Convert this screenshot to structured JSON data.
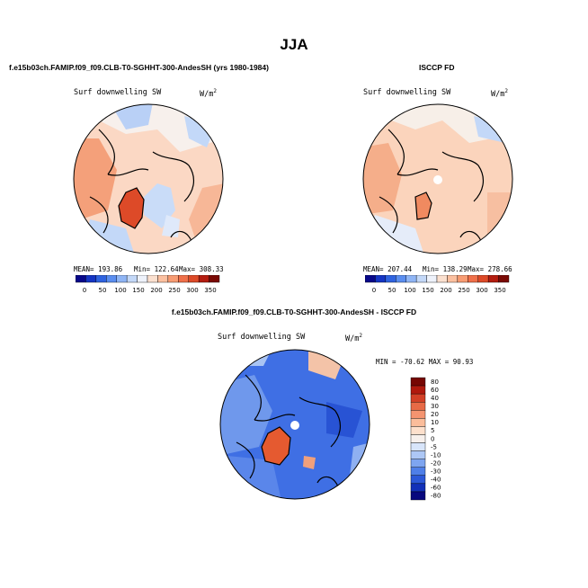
{
  "figure": {
    "title": "JJA"
  },
  "colors": {
    "abs_scale": [
      "#08088a",
      "#1535c4",
      "#2f63e0",
      "#5b8ef0",
      "#8fb5f5",
      "#c3d8f8",
      "#eef2fb",
      "#fbe0cf",
      "#fcc0a0",
      "#f89c73",
      "#f0704a",
      "#dd4a28",
      "#b41d10",
      "#7a0a05"
    ],
    "diff_scale": [
      "#08087e",
      "#1230b8",
      "#2c58d8",
      "#4f7fe8",
      "#7ea5f0",
      "#adc7f5",
      "#d8e5fa",
      "#f7f0ec",
      "#fde0cc",
      "#fbbd9b",
      "#f49470",
      "#e76a46",
      "#d24026",
      "#b0190d",
      "#760703"
    ]
  },
  "chart_data": [
    {
      "type": "heatmap",
      "name": "model",
      "title": "f.e15b03ch.FAMIP.f09_f09.CLB-T0-SGHHT-300-AndesSH (yrs 1980-1984)",
      "variable": "Surf downwelling SW",
      "units": "W/m",
      "units_exp": "2",
      "stats": {
        "mean": "MEAN= 193.86",
        "min": "Min= 122.64",
        "max": "Max= 308.33"
      },
      "colorbar_ticks": [
        "0",
        "50",
        "100",
        "150",
        "200",
        "250",
        "300",
        "350"
      ]
    },
    {
      "type": "heatmap",
      "name": "obs",
      "title": "ISCCP FD",
      "variable": "Surf downwelling SW",
      "units": "W/m",
      "units_exp": "2",
      "stats": {
        "mean": "MEAN= 207.44",
        "min": "Min= 138.29",
        "max": "Max= 278.66"
      },
      "colorbar_ticks": [
        "0",
        "50",
        "100",
        "150",
        "200",
        "250",
        "300",
        "350"
      ]
    },
    {
      "type": "heatmap",
      "name": "difference",
      "title": "f.e15b03ch.FAMIP.f09_f09.CLB-T0-SGHHT-300-AndesSH - ISCCP FD",
      "variable": "Surf downwelling SW",
      "units": "W/m",
      "units_exp": "2",
      "stats": {
        "minmax": "MIN = -70.62  MAX =  90.93"
      },
      "colorbar_levels": [
        "80",
        "60",
        "40",
        "30",
        "20",
        "10",
        "5",
        "0",
        "-5",
        "-10",
        "-20",
        "-30",
        "-40",
        "-60",
        "-80"
      ]
    }
  ]
}
